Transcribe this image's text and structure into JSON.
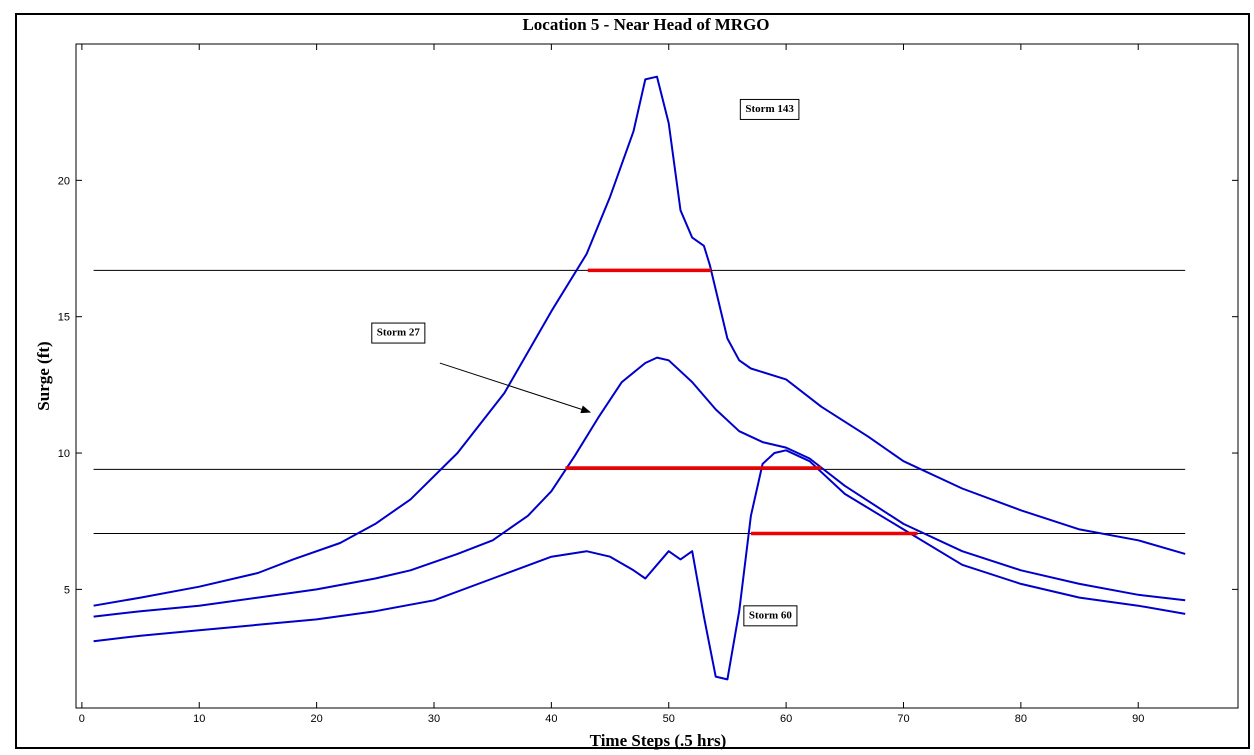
{
  "chart_data": {
    "type": "line",
    "title": "Location 5 - Near Head of MRGO",
    "xlabel": "Time Steps (.5 hrs)",
    "ylabel": "Surge (ft)",
    "xlim": [
      -0.5,
      98.5
    ],
    "ylim": [
      0.65,
      25.0
    ],
    "xticks": [
      0,
      10,
      20,
      30,
      40,
      50,
      60,
      70,
      80,
      90
    ],
    "yticks": [
      5,
      10,
      15,
      20
    ],
    "grid": false,
    "legend": "none",
    "colors": {
      "series": "#0000cc",
      "threshold": "#000000",
      "window": "#ee0000",
      "box": "#000000"
    },
    "series": [
      {
        "x": [
          1,
          5,
          10,
          15,
          18,
          22,
          25,
          28,
          32,
          36,
          40,
          43,
          45,
          47,
          48,
          49,
          50,
          51,
          52,
          53,
          53.5,
          55,
          56,
          57,
          60,
          63,
          67,
          70,
          75,
          80,
          85,
          90,
          94
        ],
        "values": [
          4.4,
          4.7,
          5.1,
          5.6,
          6.1,
          6.7,
          7.4,
          8.3,
          10.0,
          12.2,
          15.2,
          17.3,
          19.4,
          21.8,
          23.7,
          23.8,
          22.1,
          18.9,
          17.9,
          17.6,
          16.9,
          14.2,
          13.4,
          13.1,
          12.7,
          11.7,
          10.6,
          9.7,
          8.7,
          7.9,
          7.2,
          6.8,
          6.3
        ]
      },
      {
        "x": [
          1,
          5,
          10,
          15,
          20,
          25,
          28,
          32,
          35,
          38,
          40,
          42,
          44,
          46,
          48,
          49,
          50,
          52,
          54,
          56,
          58,
          60,
          62,
          65,
          70,
          75,
          80,
          85,
          90,
          94
        ],
        "values": [
          4.0,
          4.2,
          4.4,
          4.7,
          5.0,
          5.4,
          5.7,
          6.3,
          6.8,
          7.7,
          8.6,
          9.9,
          11.3,
          12.6,
          13.3,
          13.5,
          13.4,
          12.6,
          11.6,
          10.8,
          10.4,
          10.2,
          9.8,
          8.8,
          7.4,
          6.4,
          5.7,
          5.2,
          4.8,
          4.6
        ]
      },
      {
        "x": [
          1,
          5,
          10,
          15,
          20,
          25,
          30,
          35,
          40,
          43,
          45,
          47,
          48,
          49,
          50,
          51,
          52,
          53,
          54,
          55,
          56,
          57,
          58,
          59,
          60,
          62,
          65,
          70,
          75,
          80,
          85,
          90,
          94
        ],
        "values": [
          3.1,
          3.3,
          3.5,
          3.7,
          3.9,
          4.2,
          4.6,
          5.4,
          6.2,
          6.4,
          6.2,
          5.7,
          5.4,
          5.9,
          6.4,
          6.1,
          6.4,
          4.0,
          1.8,
          1.7,
          4.2,
          7.7,
          9.6,
          10.0,
          10.1,
          9.7,
          8.5,
          7.2,
          5.9,
          5.2,
          4.7,
          4.4,
          4.1
        ]
      }
    ],
    "threshold_lines": [
      {
        "y": 16.7,
        "x_start": 1,
        "x_end": 94
      },
      {
        "y": 9.4,
        "x_start": 1,
        "x_end": 94
      },
      {
        "y": 7.05,
        "x_start": 1,
        "x_end": 94
      }
    ],
    "duration_segments": [
      {
        "y": 16.7,
        "x_start": 43.1,
        "x_end": 53.6
      },
      {
        "y": 9.45,
        "x_start": 41.2,
        "x_end": 63.0
      },
      {
        "y": 7.05,
        "x_start": 57.0,
        "x_end": 71.2
      }
    ],
    "annotations": [
      {
        "text": "Storm 143",
        "x": 56.1,
        "y": 22.6
      },
      {
        "text": "Storm 27",
        "x": 24.7,
        "y": 14.4
      },
      {
        "text": "Storm 60",
        "x": 56.4,
        "y": 4.03
      }
    ],
    "arrows": [
      {
        "from_x": 30.5,
        "from_y": 13.3,
        "to_x": 43.3,
        "to_y": 11.5
      }
    ]
  }
}
